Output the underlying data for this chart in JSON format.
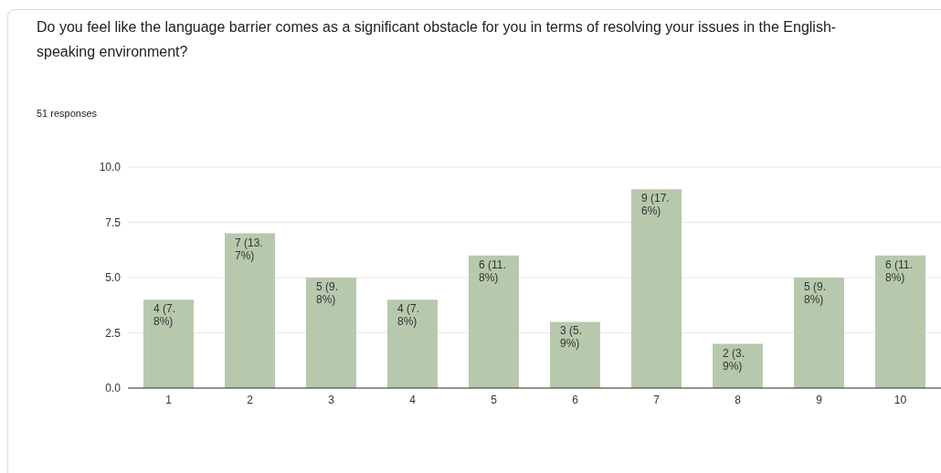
{
  "chart_data": {
    "type": "bar",
    "title": "Do you feel like the language barrier comes as a significant obstacle for you in terms of resolving your issues in the English-speaking environment?",
    "subtitle": "51 responses",
    "categories": [
      "1",
      "2",
      "3",
      "4",
      "5",
      "6",
      "7",
      "8",
      "9",
      "10"
    ],
    "values": [
      4,
      7,
      5,
      4,
      6,
      3,
      9,
      2,
      5,
      6
    ],
    "value_labels": [
      "4 (7.8%)",
      "7 (13.7%)",
      "5 (9.8%)",
      "4 (7.8%)",
      "6 (11.8%)",
      "3 (5.9%)",
      "9 (17.6%)",
      "2 (3.9%)",
      "5 (9.8%)",
      "6 (11.8%)"
    ],
    "color": "#b7c9ad",
    "ylim": [
      0,
      10
    ],
    "yticks": [
      {
        "value": 0,
        "label": "0.0"
      },
      {
        "value": 2.5,
        "label": "2.5"
      },
      {
        "value": 5,
        "label": "5.0"
      },
      {
        "value": 7.5,
        "label": "7.5"
      },
      {
        "value": 10,
        "label": "10.0"
      }
    ],
    "grid": "y",
    "legend": false
  }
}
